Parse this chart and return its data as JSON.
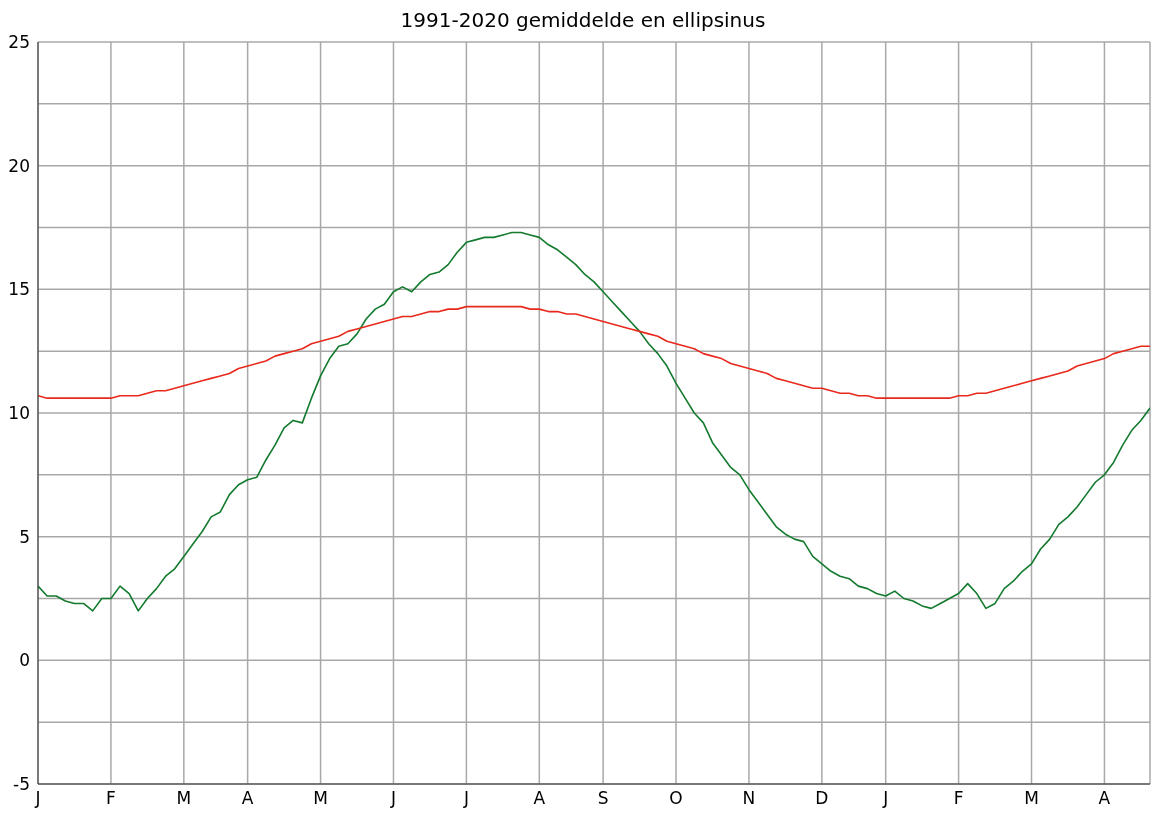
{
  "chart_data": {
    "type": "line",
    "title": "1991-2020 gemiddelde en ellipsinus",
    "categories": [
      "J",
      null,
      null,
      null,
      null,
      null,
      null,
      null,
      "F",
      null,
      null,
      null,
      null,
      null,
      null,
      null,
      "M",
      null,
      null,
      null,
      null,
      null,
      null,
      "A",
      null,
      null,
      null,
      null,
      null,
      null,
      null,
      "M",
      null,
      null,
      null,
      null,
      null,
      null,
      null,
      "J",
      null,
      null,
      null,
      null,
      null,
      null,
      null,
      "J",
      null,
      null,
      null,
      null,
      null,
      null,
      null,
      "A",
      null,
      null,
      null,
      null,
      null,
      null,
      "S",
      null,
      null,
      null,
      null,
      null,
      null,
      null,
      "O",
      null,
      null,
      null,
      null,
      null,
      null,
      null,
      "N",
      null,
      null,
      null,
      null,
      null,
      null,
      null,
      "D",
      null,
      null,
      null,
      null,
      null,
      null,
      "J",
      null,
      null,
      null,
      null,
      null,
      null,
      null,
      "F",
      null,
      null,
      null,
      null,
      null,
      null,
      null,
      "M",
      null,
      null,
      null,
      null,
      null,
      null,
      null,
      "A",
      null,
      null,
      null,
      null,
      null
    ],
    "ylim": [
      -5,
      25
    ],
    "yticks": [
      -5,
      {
        "value": -2.5,
        "label": null
      },
      0,
      {
        "value": 2.5,
        "label": null
      },
      5,
      {
        "value": 7.5,
        "label": null
      },
      10,
      {
        "value": 12.5,
        "label": null
      },
      15,
      {
        "value": 17.5,
        "label": null
      },
      20,
      {
        "value": 22.5,
        "label": null
      },
      25
    ],
    "grid": true,
    "marker": "none",
    "line_style": "solid",
    "series": [
      {
        "color": "#137a2e",
        "values": [
          3.0,
          2.6,
          2.6,
          2.4,
          2.3,
          2.3,
          2.0,
          2.5,
          2.5,
          3.0,
          2.7,
          2.0,
          2.5,
          2.9,
          3.4,
          3.7,
          4.2,
          4.7,
          5.2,
          5.8,
          6.0,
          6.7,
          7.1,
          7.3,
          7.4,
          8.1,
          8.7,
          9.4,
          9.7,
          9.6,
          10.6,
          11.5,
          12.2,
          12.7,
          12.8,
          13.2,
          13.8,
          14.2,
          14.4,
          14.9,
          15.1,
          14.9,
          15.3,
          15.6,
          15.7,
          16.0,
          16.5,
          16.9,
          17.0,
          17.1,
          17.1,
          17.2,
          17.3,
          17.3,
          17.2,
          17.1,
          16.8,
          16.6,
          16.3,
          16.0,
          15.6,
          15.3,
          14.9,
          14.5,
          14.1,
          13.7,
          13.3,
          12.8,
          12.4,
          11.9,
          11.2,
          10.6,
          10.0,
          9.6,
          8.8,
          8.3,
          7.8,
          7.5,
          6.9,
          6.4,
          5.9,
          5.4,
          5.1,
          4.9,
          4.8,
          4.2,
          3.9,
          3.6,
          3.4,
          3.3,
          3.0,
          2.9,
          2.7,
          2.6,
          2.8,
          2.5,
          2.4,
          2.2,
          2.1,
          2.3,
          2.5,
          2.7,
          3.1,
          2.7,
          2.1,
          2.3,
          2.9,
          3.2,
          3.6,
          3.9,
          4.5,
          4.9,
          5.5,
          5.8,
          6.2,
          6.7,
          7.2,
          7.5,
          8.0,
          8.7,
          9.3,
          9.7,
          10.2
        ]
      },
      {
        "color": "#e8291c",
        "values": [
          10.7,
          10.6,
          10.6,
          10.6,
          10.6,
          10.6,
          10.6,
          10.6,
          10.6,
          10.7,
          10.7,
          10.7,
          10.8,
          10.9,
          10.9,
          11.0,
          11.1,
          11.2,
          11.3,
          11.4,
          11.5,
          11.6,
          11.8,
          11.9,
          12.0,
          12.1,
          12.3,
          12.4,
          12.5,
          12.6,
          12.8,
          12.9,
          13.0,
          13.1,
          13.3,
          13.4,
          13.5,
          13.6,
          13.7,
          13.8,
          13.9,
          13.9,
          14.0,
          14.1,
          14.1,
          14.2,
          14.2,
          14.3,
          14.3,
          14.3,
          14.3,
          14.3,
          14.3,
          14.3,
          14.2,
          14.2,
          14.1,
          14.1,
          14.0,
          14.0,
          13.9,
          13.8,
          13.7,
          13.6,
          13.5,
          13.4,
          13.3,
          13.2,
          13.1,
          12.9,
          12.8,
          12.7,
          12.6,
          12.4,
          12.3,
          12.2,
          12.0,
          11.9,
          11.8,
          11.7,
          11.6,
          11.4,
          11.3,
          11.2,
          11.1,
          11.0,
          11.0,
          10.9,
          10.8,
          10.8,
          10.7,
          10.7,
          10.6,
          10.6,
          10.6,
          10.6,
          10.6,
          10.6,
          10.6,
          10.6,
          10.6,
          10.7,
          10.7,
          10.8,
          10.8,
          10.9,
          11.0,
          11.1,
          11.2,
          11.3,
          11.4,
          11.5,
          11.6,
          11.7,
          11.9,
          12.0,
          12.1,
          12.2,
          12.4,
          12.5,
          12.6,
          12.7,
          12.7
        ]
      }
    ]
  }
}
